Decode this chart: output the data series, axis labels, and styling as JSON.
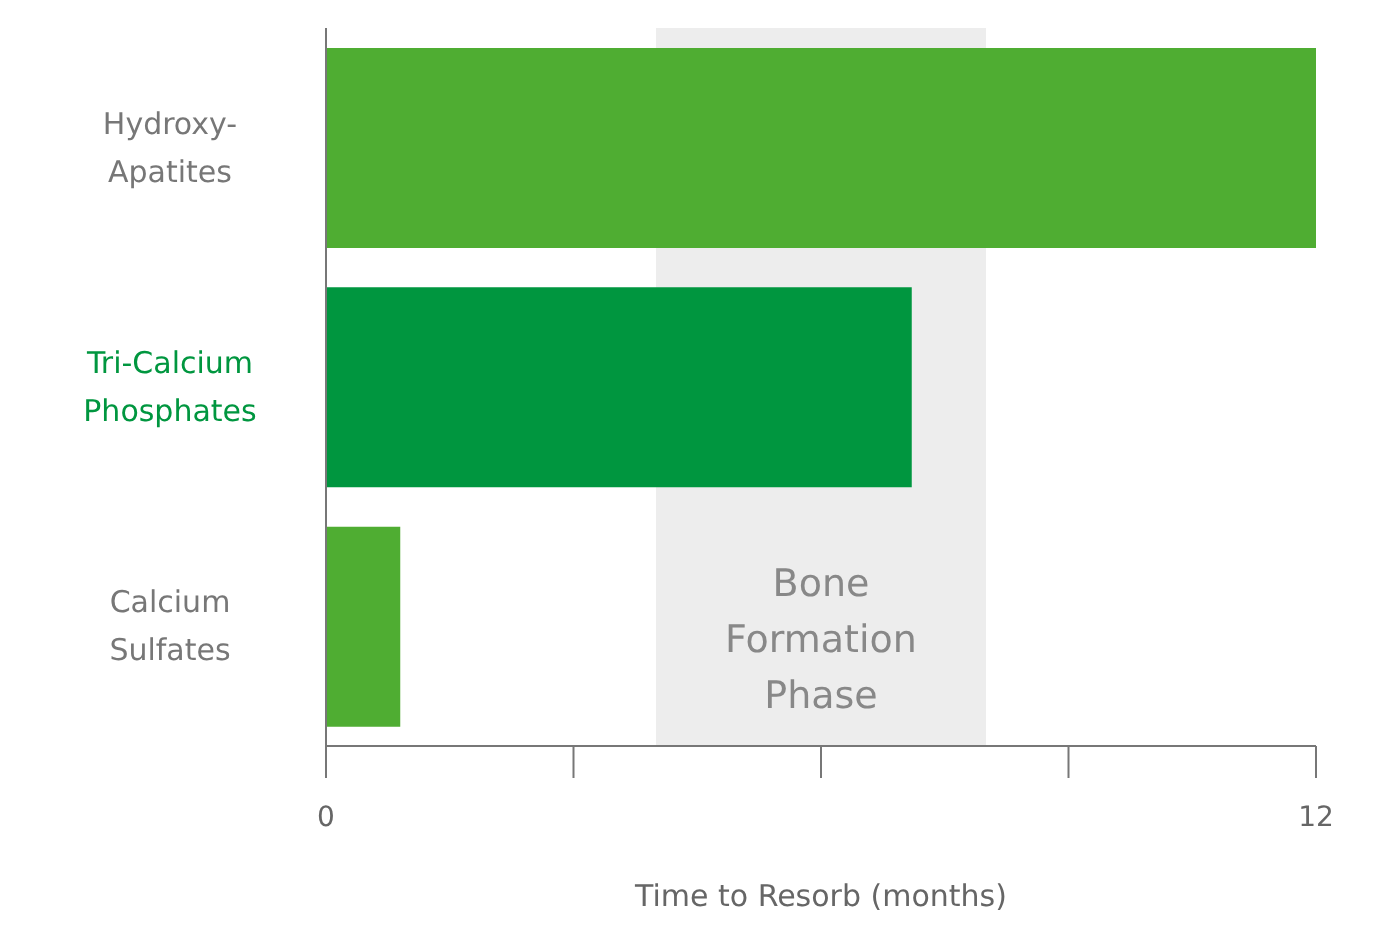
{
  "chart_data": {
    "type": "bar",
    "orientation": "horizontal",
    "xlabel": "Time to Resorb (months)",
    "categories": [
      "Hydroxy-Apatites",
      "Tri-Calcium Phosphates",
      "Calcium Sulfates"
    ],
    "values": [
      12,
      7.1,
      0.9
    ],
    "colors": [
      "#4fad32",
      "#00963f",
      "#4fad32"
    ],
    "xlim": [
      0,
      12
    ],
    "xticks": [
      0,
      {
        "value": 3,
        "label": null
      },
      {
        "value": 6,
        "label": null
      },
      {
        "value": 9,
        "label": null
      },
      12
    ],
    "bands": [
      {
        "axis": "x",
        "from": 4,
        "to": 8,
        "label": "Bone Formation Phase",
        "color": "#e6e6e6"
      }
    ],
    "grid": false,
    "legend": false
  }
}
